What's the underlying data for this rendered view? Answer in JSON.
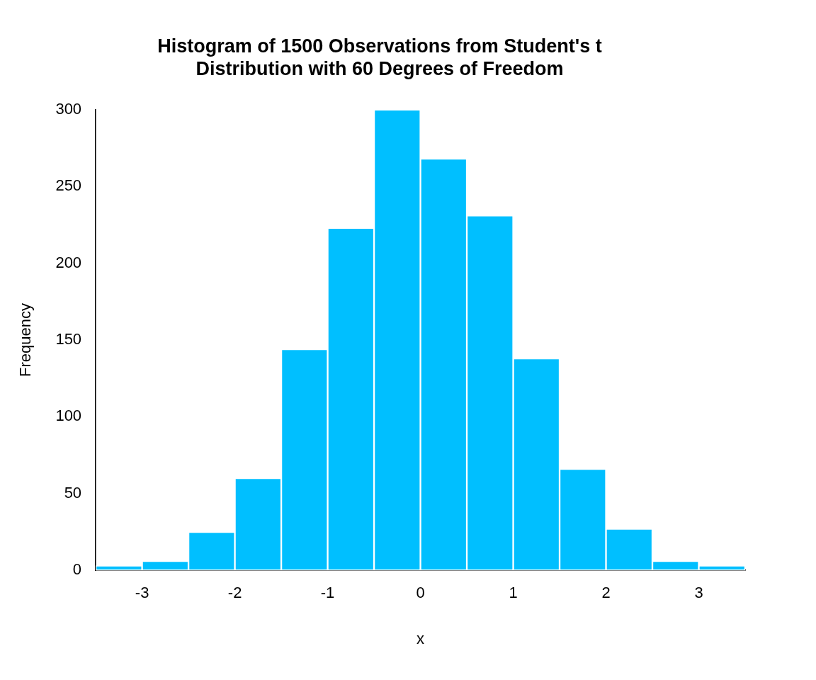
{
  "chart_data": {
    "type": "histogram",
    "title": [
      "Histogram of 1500 Observations from Student's t",
      "Distribution with 60 Degrees of Freedom"
    ],
    "x_label": "x",
    "y_label": "Frequency",
    "bins": [
      -3.5,
      -3,
      -2.5,
      -2,
      -1.5,
      -1,
      -0.5,
      0,
      0.5,
      1,
      1.5,
      2,
      2.5,
      3,
      3.5
    ],
    "values": [
      3,
      6,
      25,
      60,
      144,
      223,
      300,
      268,
      231,
      138,
      66,
      27,
      6,
      3
    ],
    "color": "#00bfff",
    "xlim": [
      -3.5,
      3.5
    ],
    "xticks": [
      -3,
      -2,
      -1,
      0,
      1,
      2,
      3
    ],
    "ylim": [
      0,
      300
    ],
    "yticks": [
      0,
      50,
      100,
      150,
      200,
      250,
      300
    ],
    "grid": false
  }
}
